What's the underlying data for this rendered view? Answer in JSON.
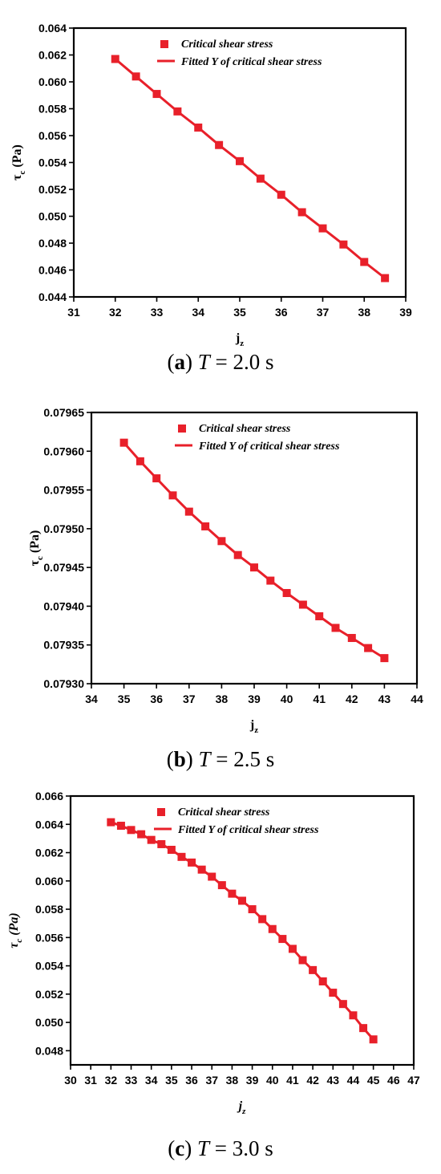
{
  "chart_data": [
    {
      "type": "line",
      "caption": {
        "letter": "a",
        "rest": "T = 2.0 s"
      },
      "xlabel": "j",
      "xlabel_sub": "z",
      "xlabel_italic": false,
      "ylabel": "τ",
      "ylabel_sub": "c",
      "ylabel_unit": " (Pa)",
      "ylabel_italic": false,
      "xlim": [
        31,
        39
      ],
      "ylim": [
        0.044,
        0.064
      ],
      "xticks": [
        31,
        32,
        33,
        34,
        35,
        36,
        37,
        38,
        39
      ],
      "yticks": [
        0.044,
        0.046,
        0.048,
        0.05,
        0.052,
        0.054,
        0.056,
        0.058,
        0.06,
        0.062,
        0.064
      ],
      "ytick_decimals": 3,
      "legend": {
        "position": "top",
        "markers_label": "Critical  shear stress",
        "line_label": "Fitted Y of critical  shear stress"
      },
      "color": "#e8202a",
      "x": [
        32,
        32.5,
        33,
        33.5,
        34,
        34.5,
        35,
        35.5,
        36,
        36.5,
        37,
        37.5,
        38,
        38.5
      ],
      "y": [
        0.0617,
        0.0604,
        0.0591,
        0.0578,
        0.0566,
        0.0553,
        0.0541,
        0.0528,
        0.0516,
        0.0503,
        0.0491,
        0.0479,
        0.0466,
        0.0454
      ]
    },
    {
      "type": "line",
      "caption": {
        "letter": "b",
        "rest": "T = 2.5 s"
      },
      "xlabel": "j",
      "xlabel_sub": "z",
      "xlabel_italic": false,
      "ylabel": "τ",
      "ylabel_sub": "c",
      "ylabel_unit": " (Pa)",
      "ylabel_italic": false,
      "xlim": [
        34,
        44
      ],
      "ylim": [
        0.0793,
        0.07965
      ],
      "xticks": [
        34,
        35,
        36,
        37,
        38,
        39,
        40,
        41,
        42,
        43,
        44
      ],
      "yticks": [
        0.0793,
        0.07935,
        0.0794,
        0.07945,
        0.0795,
        0.07955,
        0.0796,
        0.07965
      ],
      "ytick_decimals": 5,
      "legend": {
        "position": "top",
        "markers_label": "Critical  shear stress",
        "line_label": "Fitted Y of critical  shear stress"
      },
      "color": "#e8202a",
      "x": [
        35,
        35.5,
        36,
        36.5,
        37,
        37.5,
        38,
        38.5,
        39,
        39.5,
        40,
        40.5,
        41,
        41.5,
        42,
        42.5,
        43
      ],
      "y": [
        0.079611,
        0.079587,
        0.079565,
        0.079543,
        0.079522,
        0.079503,
        0.079484,
        0.079466,
        0.07945,
        0.079433,
        0.079417,
        0.079402,
        0.079387,
        0.079372,
        0.079359,
        0.079346,
        0.079333
      ]
    },
    {
      "type": "line",
      "caption": {
        "letter": "c",
        "rest": "T = 3.0 s"
      },
      "xlabel": "j",
      "xlabel_sub": "z",
      "xlabel_italic": true,
      "ylabel": "τ",
      "ylabel_sub": "c",
      "ylabel_unit": " (Pa)",
      "ylabel_italic": true,
      "xlim": [
        30,
        47
      ],
      "ylim": [
        0.047,
        0.066
      ],
      "xticks": [
        30,
        31,
        32,
        33,
        34,
        35,
        36,
        37,
        38,
        39,
        40,
        41,
        42,
        43,
        44,
        45,
        46,
        47
      ],
      "yticks": [
        0.048,
        0.05,
        0.052,
        0.054,
        0.056,
        0.058,
        0.06,
        0.062,
        0.064,
        0.066
      ],
      "ytick_decimals": 3,
      "legend": {
        "position": "top",
        "markers_label": "Critical  shear stress",
        "line_label": "Fitted Y of critical  shear stress"
      },
      "color": "#e8202a",
      "x": [
        32,
        32.5,
        33,
        33.5,
        34,
        34.5,
        35,
        35.5,
        36,
        36.5,
        37,
        37.5,
        38,
        38.5,
        39,
        39.5,
        40,
        40.5,
        41,
        41.5,
        42,
        42.5,
        43,
        43.5,
        44,
        44.5,
        45
      ],
      "y": [
        0.06415,
        0.0639,
        0.0636,
        0.0633,
        0.0629,
        0.0626,
        0.0622,
        0.0617,
        0.0613,
        0.0608,
        0.0603,
        0.0597,
        0.0591,
        0.0586,
        0.058,
        0.0573,
        0.0566,
        0.0559,
        0.0552,
        0.0544,
        0.0537,
        0.0529,
        0.0521,
        0.0513,
        0.0505,
        0.0496,
        0.0488
      ]
    }
  ]
}
